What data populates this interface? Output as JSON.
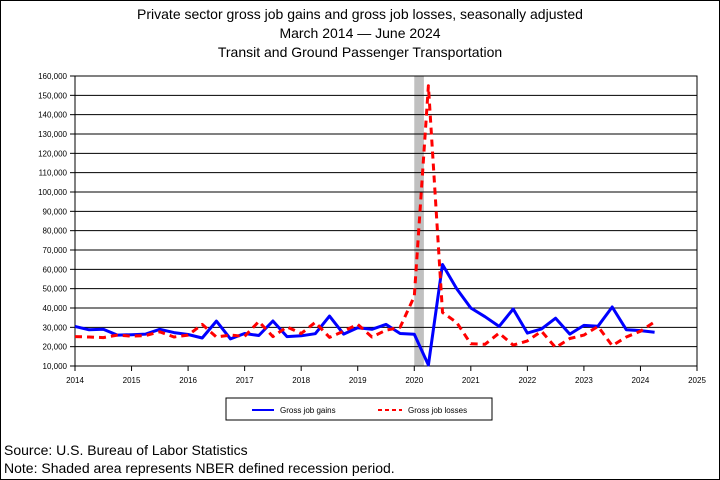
{
  "chart_data": {
    "type": "line",
    "title": "Private sector gross job gains and gross job losses, seasonally adjusted",
    "subtitle_period": "March 2014 — June 2024",
    "subtitle_industry": "Transit and Ground Passenger Transportation",
    "xlabel": "",
    "ylabel": "",
    "xlim": [
      2014,
      2025
    ],
    "ylim": [
      10000,
      160000
    ],
    "x_ticks": [
      2014,
      2015,
      2016,
      2017,
      2018,
      2019,
      2020,
      2021,
      2022,
      2023,
      2024,
      2025
    ],
    "x_tick_labels": [
      "2014",
      "2015",
      "2016",
      "2017",
      "2018",
      "2019",
      "2020",
      "2021",
      "2022",
      "2023",
      "2024",
      "2025"
    ],
    "y_ticks": [
      10000,
      20000,
      30000,
      40000,
      50000,
      60000,
      70000,
      80000,
      90000,
      100000,
      110000,
      120000,
      130000,
      140000,
      150000,
      160000
    ],
    "y_tick_labels": [
      "10,000",
      "20,000",
      "30,000",
      "40,000",
      "50,000",
      "60,000",
      "70,000",
      "80,000",
      "90,000",
      "100,000",
      "110,000",
      "120,000",
      "130,000",
      "140,000",
      "150,000",
      "160,000"
    ],
    "grid": "horizontal",
    "recession_shading": {
      "x_start": 2020.0,
      "x_end": 2020.17,
      "color": "#c0c0c0"
    },
    "legend_position": "bottom",
    "series": [
      {
        "name": "Gross job gains",
        "color": "#0000ff",
        "dash": "solid",
        "x": [
          2014.0,
          2014.25,
          2014.5,
          2014.75,
          2015.0,
          2015.25,
          2015.5,
          2015.75,
          2016.0,
          2016.25,
          2016.5,
          2016.75,
          2017.0,
          2017.25,
          2017.5,
          2017.75,
          2018.0,
          2018.25,
          2018.5,
          2018.75,
          2019.0,
          2019.25,
          2019.5,
          2019.75,
          2020.0,
          2020.25,
          2020.5,
          2020.75,
          2021.0,
          2021.25,
          2021.5,
          2021.75,
          2022.0,
          2022.25,
          2022.5,
          2022.75,
          2023.0,
          2023.25,
          2023.5,
          2023.75,
          2024.0,
          2024.25
        ],
        "y": [
          30500,
          28700,
          29000,
          26000,
          26200,
          26500,
          29000,
          27300,
          26300,
          24500,
          33200,
          24000,
          26800,
          25800,
          33300,
          25200,
          25600,
          26700,
          35800,
          26500,
          29800,
          29000,
          31500,
          26800,
          26400,
          10500,
          62500,
          50000,
          40000,
          35500,
          30500,
          39500,
          27000,
          29200,
          34700,
          26500,
          31000,
          30600,
          40500,
          28800,
          28300,
          27500
        ]
      },
      {
        "name": "Gross job losses",
        "color": "#ff0000",
        "dash": "dashed",
        "x": [
          2014.0,
          2014.25,
          2014.5,
          2014.75,
          2015.0,
          2015.25,
          2015.5,
          2015.75,
          2016.0,
          2016.25,
          2016.5,
          2016.75,
          2017.0,
          2017.25,
          2017.5,
          2017.75,
          2018.0,
          2018.25,
          2018.5,
          2018.75,
          2019.0,
          2019.25,
          2019.5,
          2019.75,
          2020.0,
          2020.25,
          2020.5,
          2020.75,
          2021.0,
          2021.25,
          2021.5,
          2021.75,
          2022.0,
          2022.25,
          2022.5,
          2022.75,
          2023.0,
          2023.25,
          2023.5,
          2023.75,
          2024.0,
          2024.25
        ],
        "y": [
          25200,
          25000,
          24700,
          26000,
          25400,
          25800,
          27700,
          25000,
          26000,
          31500,
          25000,
          26000,
          25300,
          33000,
          25200,
          30200,
          26800,
          32600,
          24800,
          28000,
          31500,
          25000,
          28500,
          30000,
          46000,
          155000,
          37700,
          32500,
          21500,
          21200,
          27000,
          20800,
          23000,
          28000,
          19500,
          24200,
          26000,
          30500,
          20500,
          25000,
          28000,
          32800
        ]
      }
    ]
  },
  "footer": {
    "source": "Source: U.S. Bureau of Labor Statistics",
    "note": "Note: Shaded area represents NBER defined recession period."
  }
}
